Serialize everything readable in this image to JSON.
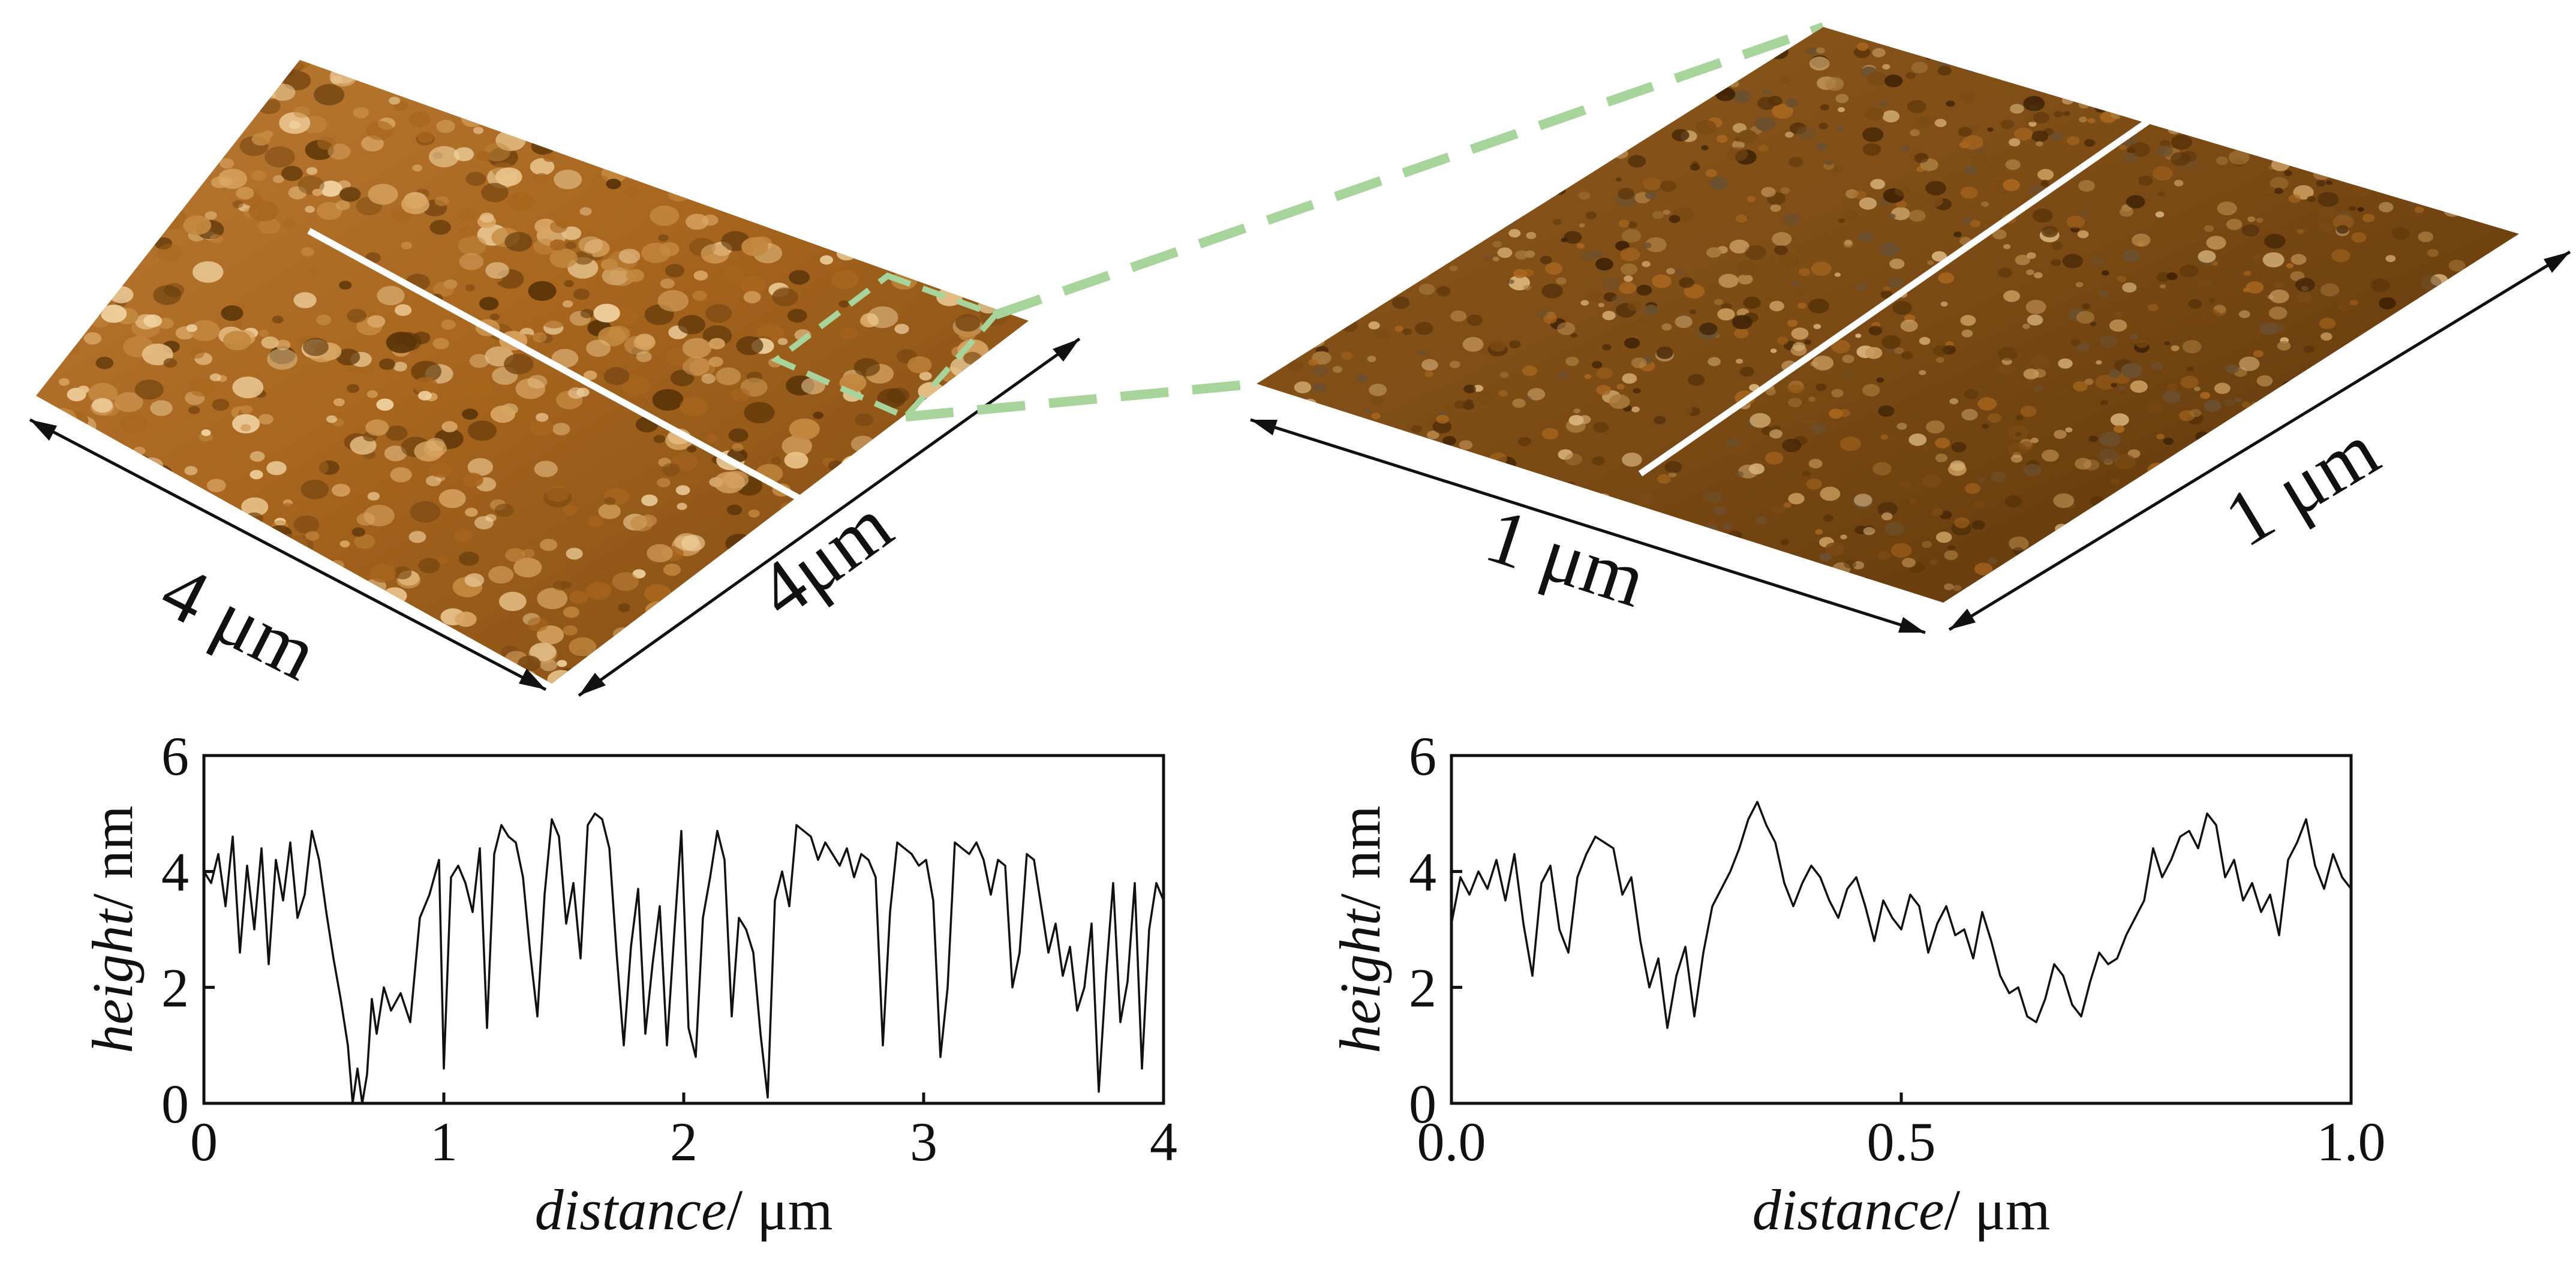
{
  "colors": {
    "afm_dark": "#5a3408",
    "afm_mid": "#a8661e",
    "afm_light": "#f0d2a0",
    "scan_line": "#ffffff",
    "zoom_box": "#a6d49a",
    "trace": "#111111"
  },
  "afm_images": [
    {
      "dim_a": "4 μm",
      "dim_b": "4μm"
    },
    {
      "dim_a": "1 μm",
      "dim_b": "1 μm"
    }
  ],
  "chart_data": [
    {
      "type": "line",
      "xlabel_italic": "distance",
      "xlabel_unit": "/ μm",
      "ylabel_italic": "height",
      "ylabel_unit": "/ nm",
      "xlim": [
        0,
        4
      ],
      "ylim": [
        0,
        6
      ],
      "xticks": [
        0,
        1,
        2,
        3,
        4
      ],
      "xtick_labels": [
        "0",
        "1",
        "2",
        "3",
        "4"
      ],
      "yticks": [
        0,
        2,
        4,
        6
      ],
      "ytick_labels": [
        "0",
        "2",
        "4",
        "6"
      ],
      "grid": false,
      "series": [
        {
          "x": [
            0.0,
            0.03,
            0.06,
            0.09,
            0.12,
            0.15,
            0.18,
            0.21,
            0.24,
            0.27,
            0.3,
            0.33,
            0.36,
            0.39,
            0.42,
            0.45,
            0.48,
            0.51,
            0.54,
            0.57,
            0.6,
            0.62,
            0.64,
            0.66,
            0.68,
            0.7,
            0.72,
            0.75,
            0.78,
            0.82,
            0.86,
            0.9,
            0.94,
            0.98,
            1.0,
            1.03,
            1.06,
            1.09,
            1.12,
            1.15,
            1.18,
            1.21,
            1.24,
            1.27,
            1.3,
            1.33,
            1.36,
            1.39,
            1.42,
            1.45,
            1.48,
            1.51,
            1.54,
            1.57,
            1.6,
            1.63,
            1.66,
            1.69,
            1.72,
            1.75,
            1.78,
            1.81,
            1.84,
            1.87,
            1.9,
            1.93,
            1.96,
            1.99,
            2.02,
            2.05,
            2.08,
            2.11,
            2.14,
            2.17,
            2.2,
            2.23,
            2.26,
            2.29,
            2.32,
            2.35,
            2.38,
            2.41,
            2.44,
            2.47,
            2.5,
            2.53,
            2.56,
            2.59,
            2.62,
            2.65,
            2.68,
            2.71,
            2.74,
            2.77,
            2.8,
            2.83,
            2.86,
            2.89,
            2.92,
            2.95,
            2.98,
            3.01,
            3.04,
            3.07,
            3.1,
            3.13,
            3.16,
            3.19,
            3.22,
            3.25,
            3.28,
            3.31,
            3.34,
            3.37,
            3.4,
            3.43,
            3.46,
            3.49,
            3.52,
            3.55,
            3.58,
            3.61,
            3.64,
            3.67,
            3.7,
            3.73,
            3.76,
            3.79,
            3.82,
            3.85,
            3.88,
            3.91,
            3.94,
            3.97,
            4.0
          ],
          "y": [
            4.0,
            3.8,
            4.3,
            3.4,
            4.6,
            2.6,
            4.1,
            3.0,
            4.4,
            2.4,
            4.2,
            3.5,
            4.5,
            3.2,
            3.6,
            4.7,
            4.2,
            3.3,
            2.5,
            1.8,
            1.0,
            0.0,
            0.6,
            0.0,
            0.5,
            1.8,
            1.2,
            2.0,
            1.6,
            1.9,
            1.4,
            3.2,
            3.6,
            4.2,
            0.6,
            3.9,
            4.1,
            3.8,
            3.3,
            4.4,
            1.3,
            4.3,
            4.8,
            4.6,
            4.5,
            3.9,
            2.6,
            1.5,
            3.6,
            4.9,
            4.6,
            3.1,
            3.8,
            2.5,
            4.8,
            5.0,
            4.9,
            4.4,
            2.6,
            1.0,
            2.7,
            3.7,
            1.2,
            2.4,
            3.4,
            1.0,
            2.9,
            4.7,
            1.3,
            0.8,
            3.2,
            3.9,
            4.7,
            4.2,
            1.5,
            3.2,
            3.0,
            2.6,
            1.2,
            0.1,
            3.5,
            4.0,
            3.4,
            4.8,
            4.7,
            4.6,
            4.2,
            4.5,
            4.3,
            4.1,
            4.4,
            3.9,
            4.3,
            4.2,
            3.9,
            1.0,
            3.3,
            4.5,
            4.4,
            4.3,
            4.1,
            4.2,
            3.5,
            0.8,
            2.0,
            4.5,
            4.4,
            4.3,
            4.5,
            4.2,
            3.6,
            4.2,
            4.1,
            2.0,
            2.6,
            4.3,
            4.2,
            3.4,
            2.6,
            3.1,
            2.2,
            2.7,
            1.6,
            2.0,
            3.1,
            0.2,
            2.2,
            3.8,
            1.4,
            2.1,
            3.8,
            0.6,
            3.0,
            3.8,
            3.5
          ]
        }
      ]
    },
    {
      "type": "line",
      "xlabel_italic": "distance",
      "xlabel_unit": "/ μm",
      "ylabel_italic": "height",
      "ylabel_unit": "/ nm",
      "xlim": [
        0,
        1
      ],
      "ylim": [
        0,
        6
      ],
      "xticks": [
        0,
        0.5,
        1.0
      ],
      "xtick_labels": [
        "0.0",
        "0.5",
        "1.0"
      ],
      "yticks": [
        0,
        2,
        4,
        6
      ],
      "ytick_labels": [
        "0",
        "2",
        "4",
        "6"
      ],
      "grid": false,
      "series": [
        {
          "x": [
            0.0,
            0.01,
            0.02,
            0.03,
            0.04,
            0.05,
            0.06,
            0.07,
            0.08,
            0.09,
            0.1,
            0.11,
            0.12,
            0.13,
            0.14,
            0.15,
            0.16,
            0.17,
            0.18,
            0.19,
            0.2,
            0.21,
            0.22,
            0.23,
            0.24,
            0.25,
            0.26,
            0.27,
            0.28,
            0.29,
            0.3,
            0.31,
            0.32,
            0.33,
            0.34,
            0.35,
            0.36,
            0.37,
            0.38,
            0.39,
            0.4,
            0.41,
            0.42,
            0.43,
            0.44,
            0.45,
            0.46,
            0.47,
            0.48,
            0.49,
            0.5,
            0.51,
            0.52,
            0.53,
            0.54,
            0.55,
            0.56,
            0.57,
            0.58,
            0.59,
            0.6,
            0.61,
            0.62,
            0.63,
            0.64,
            0.65,
            0.66,
            0.67,
            0.68,
            0.69,
            0.7,
            0.71,
            0.72,
            0.73,
            0.74,
            0.75,
            0.76,
            0.77,
            0.78,
            0.79,
            0.8,
            0.81,
            0.82,
            0.83,
            0.84,
            0.85,
            0.86,
            0.87,
            0.88,
            0.89,
            0.9,
            0.91,
            0.92,
            0.93,
            0.94,
            0.95,
            0.96,
            0.97,
            0.98,
            0.99,
            1.0
          ],
          "y": [
            3.1,
            3.9,
            3.6,
            4.0,
            3.7,
            4.2,
            3.5,
            4.3,
            3.1,
            2.2,
            3.8,
            4.1,
            3.0,
            2.6,
            3.9,
            4.3,
            4.6,
            4.5,
            4.4,
            3.6,
            3.9,
            2.8,
            2.0,
            2.5,
            1.3,
            2.2,
            2.7,
            1.5,
            2.6,
            3.4,
            3.7,
            4.0,
            4.4,
            4.9,
            5.2,
            4.8,
            4.5,
            3.8,
            3.4,
            3.8,
            4.1,
            3.9,
            3.5,
            3.2,
            3.7,
            3.9,
            3.4,
            2.8,
            3.5,
            3.2,
            3.0,
            3.6,
            3.4,
            2.6,
            3.1,
            3.4,
            2.9,
            3.0,
            2.5,
            3.3,
            2.8,
            2.2,
            1.9,
            2.0,
            1.5,
            1.4,
            1.8,
            2.4,
            2.2,
            1.7,
            1.5,
            2.1,
            2.6,
            2.4,
            2.5,
            2.9,
            3.2,
            3.5,
            4.4,
            3.9,
            4.2,
            4.6,
            4.7,
            4.4,
            5.0,
            4.8,
            3.9,
            4.2,
            3.5,
            3.8,
            3.3,
            3.6,
            2.9,
            4.2,
            4.5,
            4.9,
            4.1,
            3.7,
            4.3,
            3.9,
            3.7
          ]
        }
      ]
    }
  ]
}
